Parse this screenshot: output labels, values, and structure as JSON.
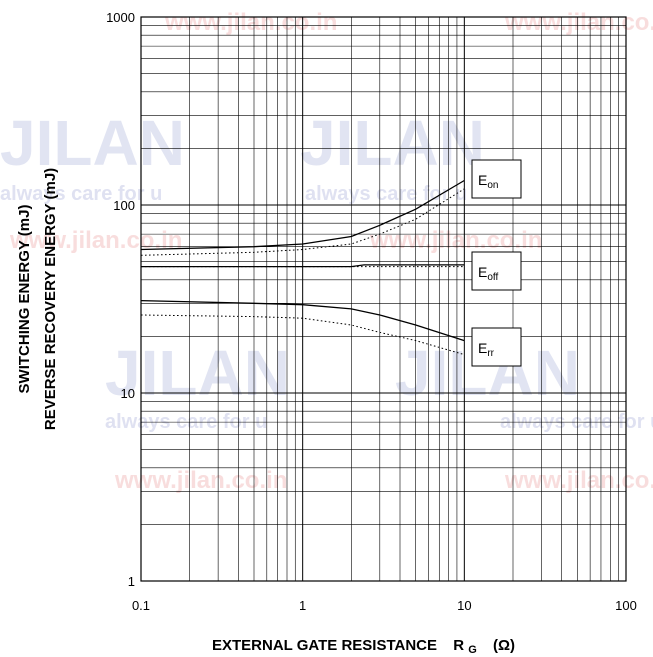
{
  "chart_data": {
    "type": "line",
    "xscale": "log",
    "yscale": "log",
    "xlim": [
      0.1,
      100
    ],
    "ylim": [
      1,
      1000
    ],
    "grid": true,
    "x_ticks": [
      "0.1",
      "1",
      "10",
      "100"
    ],
    "y_ticks": [
      "1",
      "10",
      "100",
      "1000"
    ],
    "xlabel": {
      "main": "EXTERNAL GATE RESISTANCE",
      "symbol": "R",
      "subscript": "G",
      "unit": "(Ω)"
    },
    "ylabel": [
      "SWITCHING ENERGY (mJ)",
      "REVERSE RECOVERY ENERGY (mJ)"
    ],
    "series": [
      {
        "name_main": "E",
        "name_sub": "on",
        "style": "solid",
        "x": [
          0.1,
          0.5,
          1,
          2,
          3,
          5,
          10
        ],
        "y": [
          58,
          60,
          62,
          68,
          78,
          95,
          135
        ]
      },
      {
        "name_main": "E",
        "name_sub": "on",
        "style": "dotted",
        "x": [
          0.1,
          0.5,
          1,
          2,
          3,
          5,
          10
        ],
        "y": [
          54,
          56,
          58,
          62,
          70,
          84,
          122
        ]
      },
      {
        "name_main": "E",
        "name_sub": "off",
        "style": "solid",
        "x": [
          0.1,
          1,
          2,
          2.4,
          10
        ],
        "y": [
          47,
          47,
          47,
          48,
          48
        ]
      },
      {
        "name_main": "E",
        "name_sub": "off",
        "style": "dotted",
        "x": [
          0.1,
          1,
          2,
          10
        ],
        "y": [
          47,
          47,
          47,
          47
        ]
      },
      {
        "name_main": "E",
        "name_sub": "rr",
        "style": "solid",
        "x": [
          0.1,
          0.5,
          1,
          2,
          3,
          5,
          10
        ],
        "y": [
          31,
          30,
          29.5,
          28,
          26,
          23,
          19
        ]
      },
      {
        "name_main": "E",
        "name_sub": "rr",
        "style": "dotted",
        "x": [
          0.1,
          0.5,
          1,
          2,
          3,
          5,
          10
        ],
        "y": [
          26,
          25.5,
          25,
          23,
          21,
          19,
          16
        ]
      }
    ],
    "annotations": [
      {
        "main": "E",
        "sub": "on"
      },
      {
        "main": "E",
        "sub": "off"
      },
      {
        "main": "E",
        "sub": "rr"
      }
    ]
  },
  "watermark": {
    "url": "www.jilan.co.in",
    "brand": "JILAN",
    "slogan": "always care for u",
    "color": "#c9cde8",
    "url_color": "#f3c7c7"
  }
}
